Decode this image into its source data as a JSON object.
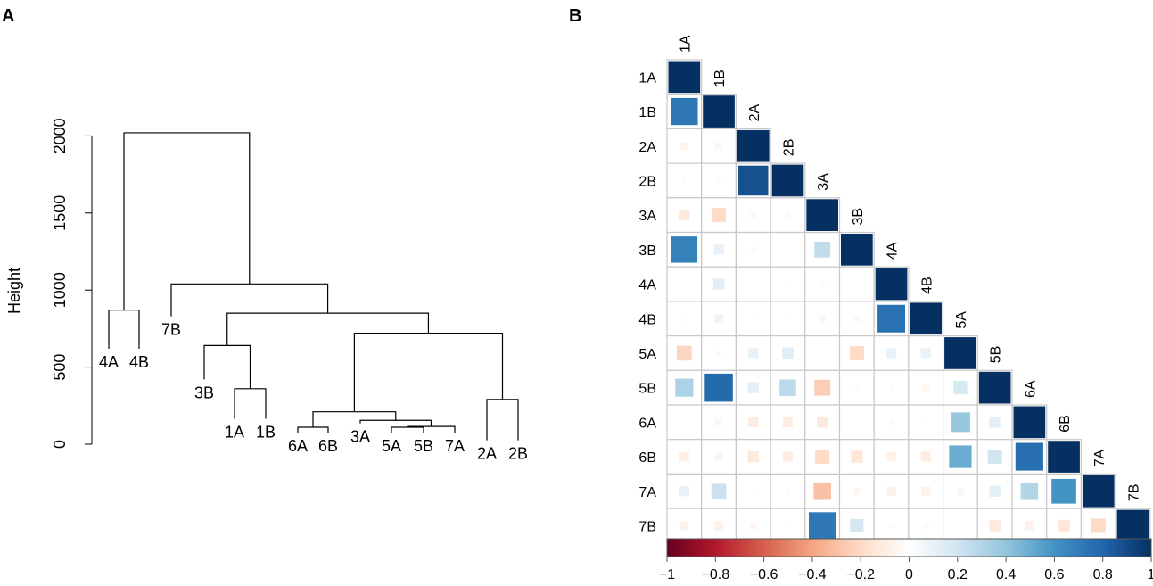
{
  "panels": {
    "a_label": "A",
    "b_label": "B"
  },
  "chart_data": [
    {
      "type": "dendrogram",
      "panel": "A",
      "ylabel": "Height",
      "ylim": [
        0,
        2050
      ],
      "yticks": [
        0,
        500,
        1000,
        1500,
        2000
      ],
      "leaves": [
        "4A",
        "4B",
        "7B",
        "3B",
        "1A",
        "1B",
        "6A",
        "6B",
        "3A",
        "5A",
        "5B",
        "7A",
        "2A",
        "2B"
      ],
      "leaf_heights": {
        "4A": 620,
        "4B": 620,
        "7B": 830,
        "3B": 420,
        "1A": 165,
        "1B": 165,
        "6A": 75,
        "6B": 75,
        "3A": 135,
        "5A": 75,
        "5B": 75,
        "7A": 75,
        "2A": 25,
        "2B": 25
      },
      "merges": [
        {
          "left": "5A",
          "right": "5B",
          "height": 110
        },
        {
          "left": "5A+5B",
          "right": "7A",
          "height": 115
        },
        {
          "left": "3A",
          "right": "5A+5B+7A",
          "height": 155
        },
        {
          "left": "6A",
          "right": "6B",
          "height": 110
        },
        {
          "left": "6A+6B",
          "right": "3A+5A+5B+7A",
          "height": 210
        },
        {
          "left": "2A",
          "right": "2B",
          "height": 290
        },
        {
          "left": "6A..7A",
          "right": "2A+2B",
          "height": 720
        },
        {
          "left": "1A",
          "right": "1B",
          "height": 360
        },
        {
          "left": "3B",
          "right": "1A+1B",
          "height": 640
        },
        {
          "left": "3B+1A+1B",
          "right": "6A..2B",
          "height": 850
        },
        {
          "left": "7B",
          "right": "3B..2B",
          "height": 1040
        },
        {
          "left": "4A",
          "right": "4B",
          "height": 870
        },
        {
          "left": "4A+4B",
          "right": "7B..2B",
          "height": 2020
        }
      ]
    },
    {
      "type": "heatmap",
      "panel": "B",
      "title": "",
      "labels": [
        "1A",
        "1B",
        "2A",
        "2B",
        "3A",
        "3B",
        "4A",
        "4B",
        "5A",
        "5B",
        "6A",
        "6B",
        "7A",
        "7B"
      ],
      "lower_triangle": [
        [
          1
        ],
        [
          0.72,
          1
        ],
        [
          -0.06,
          -0.05,
          1
        ],
        [
          -0.03,
          -0.02,
          0.88,
          1
        ],
        [
          -0.12,
          -0.2,
          -0.04,
          -0.03,
          1
        ],
        [
          0.68,
          0.1,
          -0.03,
          0.0,
          0.25,
          1
        ],
        [
          0.0,
          0.12,
          0.0,
          -0.02,
          -0.03,
          0.0,
          1
        ],
        [
          0.02,
          0.08,
          -0.02,
          -0.02,
          -0.05,
          -0.04,
          0.75,
          1
        ],
        [
          -0.22,
          0.03,
          0.1,
          0.13,
          0.0,
          -0.2,
          0.1,
          0.1,
          1
        ],
        [
          0.32,
          0.78,
          0.12,
          0.27,
          -0.25,
          0.02,
          0.02,
          -0.05,
          0.18,
          1
        ],
        [
          0.0,
          0.05,
          -0.1,
          -0.1,
          -0.12,
          0.01,
          0.03,
          0.02,
          0.38,
          0.12,
          1
        ],
        [
          -0.09,
          0.06,
          -0.12,
          -0.1,
          -0.2,
          -0.14,
          -0.08,
          -0.1,
          0.5,
          0.2,
          0.76,
          1
        ],
        [
          0.1,
          0.22,
          -0.02,
          0.02,
          -0.3,
          -0.05,
          -0.08,
          -0.08,
          0.05,
          0.12,
          0.3,
          0.6,
          1
        ],
        [
          -0.07,
          -0.08,
          -0.05,
          -0.02,
          0.72,
          0.18,
          -0.03,
          -0.04,
          0.0,
          -0.12,
          -0.08,
          -0.14,
          -0.2,
          1
        ]
      ],
      "colorbar": {
        "min": -1,
        "max": 1,
        "ticks": [
          "−1",
          "−0.8",
          "−0.6",
          "−0.4",
          "−0.2",
          "0",
          "0.2",
          "0.4",
          "0.6",
          "0.8",
          "1"
        ],
        "low_color": "#67001f",
        "mid_color": "#ffffff",
        "high_color": "#053061"
      }
    }
  ]
}
